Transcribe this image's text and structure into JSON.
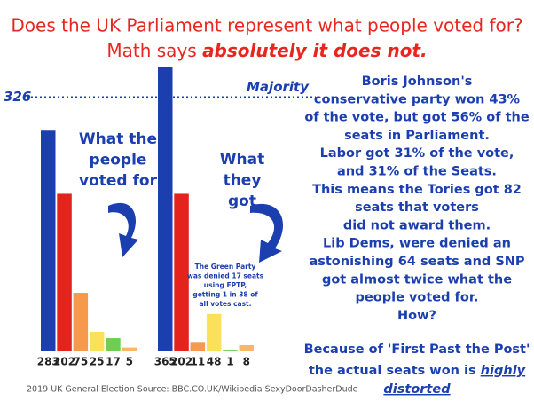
{
  "title": "Does the UK Parliament represent what people voted for?",
  "subtitle": "Math says",
  "subtitle_emphasis": "absolutely it does not.",
  "majority_line": 326,
  "majority_label": "Majority",
  "chart_data": [
    {
      "type": "bar",
      "title_lines": [
        "What the",
        "people",
        "voted for"
      ],
      "values": [
        283,
        202,
        75,
        25,
        17,
        5
      ],
      "colors": [
        "#1b3fae",
        "#e5231d",
        "#f6994a",
        "#fbe05a",
        "#6ccf54",
        "#f8b66b"
      ]
    },
    {
      "type": "bar",
      "title_lines": [
        "What",
        "they",
        "got"
      ],
      "values": [
        365,
        202,
        11,
        48,
        1,
        8
      ],
      "colors": [
        "#1b3fae",
        "#e5231d",
        "#f6994a",
        "#fbe05a",
        "#6ccf54",
        "#f8b66b"
      ],
      "note_lines": [
        "The Green Party",
        "was denied 17 seats",
        "using FPTP,",
        "getting 1 in 38 of",
        "all votes cast."
      ]
    }
  ],
  "body_lines": [
    "Boris Johnson's",
    "conservative party won 43%",
    "of the vote, but got 56% of the",
    "seats in Parliament.",
    "Labor got 31% of the vote,",
    "and 31% of the Seats.",
    "This means the Tories got 82",
    "seats that voters",
    "did not award them.",
    "Lib Dems, were denied an",
    "astonishing 64 seats and SNP",
    "got almost twice what the",
    "people voted for.",
    "How?"
  ],
  "conclusion": {
    "line1": "Because of 'First Past the Post'",
    "line2": "the actual seats won is",
    "line2_emphasis": "highly",
    "line3_emphasis": "distorted"
  },
  "source": "2019 UK General Election Source: BBC.CO.UK/Wikipedia SexyDoorDasherDude"
}
